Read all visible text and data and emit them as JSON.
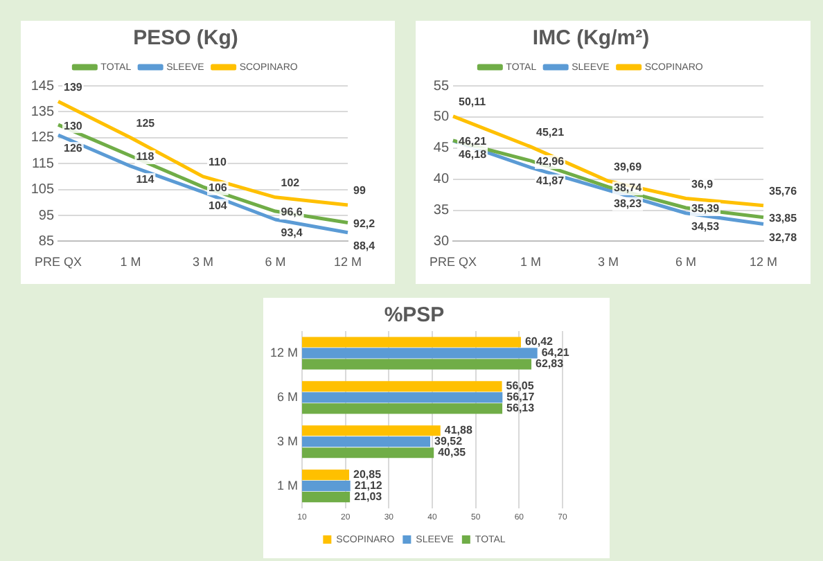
{
  "chart_data": [
    {
      "type": "line",
      "title": "PESO (Kg)",
      "categories": [
        "PRE QX",
        "1 M",
        "3 M",
        "6 M",
        "12 M"
      ],
      "series": [
        {
          "name": "TOTAL",
          "color": "#70ad47",
          "values": [
            130,
            118,
            106,
            96.6,
            92.2
          ],
          "value_labels": [
            "130",
            "118",
            "106",
            "96,6",
            "92,2"
          ]
        },
        {
          "name": "SLEEVE",
          "color": "#5b9bd5",
          "values": [
            126,
            114,
            104,
            93.4,
            88.4
          ],
          "value_labels": [
            "126",
            "114",
            "104",
            "93,4",
            "88,4"
          ]
        },
        {
          "name": "SCOPINARO",
          "color": "#ffc000",
          "values": [
            139,
            125,
            110,
            102,
            99
          ],
          "value_labels": [
            "139",
            "125",
            "110",
            "102",
            "99"
          ]
        }
      ],
      "ylim": [
        85,
        145
      ],
      "yticks": [
        85,
        95,
        105,
        115,
        125,
        135,
        145
      ],
      "grid": "y",
      "legend": "top",
      "marker": "none",
      "line_style": "solid"
    },
    {
      "type": "line",
      "title": "IMC (Kg/m²)",
      "categories": [
        "PRE QX",
        "1 M",
        "3 M",
        "6 M",
        "12 M"
      ],
      "series": [
        {
          "name": "TOTAL",
          "color": "#70ad47",
          "values": [
            46.21,
            42.96,
            38.74,
            35.39,
            33.85
          ],
          "value_labels": [
            "46,21",
            "42,96",
            "38,74",
            "35,39",
            "33,85"
          ]
        },
        {
          "name": "SLEEVE",
          "color": "#5b9bd5",
          "values": [
            46.18,
            41.87,
            38.23,
            34.53,
            32.78
          ],
          "value_labels": [
            "46,18",
            "41,87",
            "38,23",
            "34,53",
            "32,78"
          ]
        },
        {
          "name": "SCOPINARO",
          "color": "#ffc000",
          "values": [
            50.11,
            45.21,
            39.69,
            36.9,
            35.76
          ],
          "value_labels": [
            "50,11",
            "45,21",
            "39,69",
            "36,9",
            "35,76"
          ]
        }
      ],
      "ylim": [
        30,
        55
      ],
      "yticks": [
        30,
        35,
        40,
        45,
        50,
        55
      ],
      "grid": "y",
      "legend": "top",
      "marker": "none",
      "line_style": "solid"
    },
    {
      "type": "bar",
      "title": "%PSP",
      "orientation": "horizontal",
      "categories": [
        "12 M",
        "6 M",
        "3 M",
        "1 M"
      ],
      "series": [
        {
          "name": "SCOPINARO",
          "color": "#ffc000",
          "values": [
            60.42,
            56.05,
            41.88,
            20.85
          ],
          "value_labels": [
            "60,42",
            "56,05",
            "41,88",
            "20,85"
          ]
        },
        {
          "name": "SLEEVE",
          "color": "#5b9bd5",
          "values": [
            64.21,
            56.17,
            39.52,
            21.12
          ],
          "value_labels": [
            "64,21",
            "56,17",
            "39,52",
            "21,12"
          ]
        },
        {
          "name": "TOTAL",
          "color": "#70ad47",
          "values": [
            62.83,
            56.13,
            40.35,
            21.03
          ],
          "value_labels": [
            "62,83",
            "56,13",
            "40,35",
            "21,03"
          ]
        }
      ],
      "xlim": [
        10,
        70
      ],
      "xticks": [
        10,
        20,
        30,
        40,
        50,
        60,
        70
      ],
      "grid": "x",
      "legend": "bottom"
    }
  ]
}
